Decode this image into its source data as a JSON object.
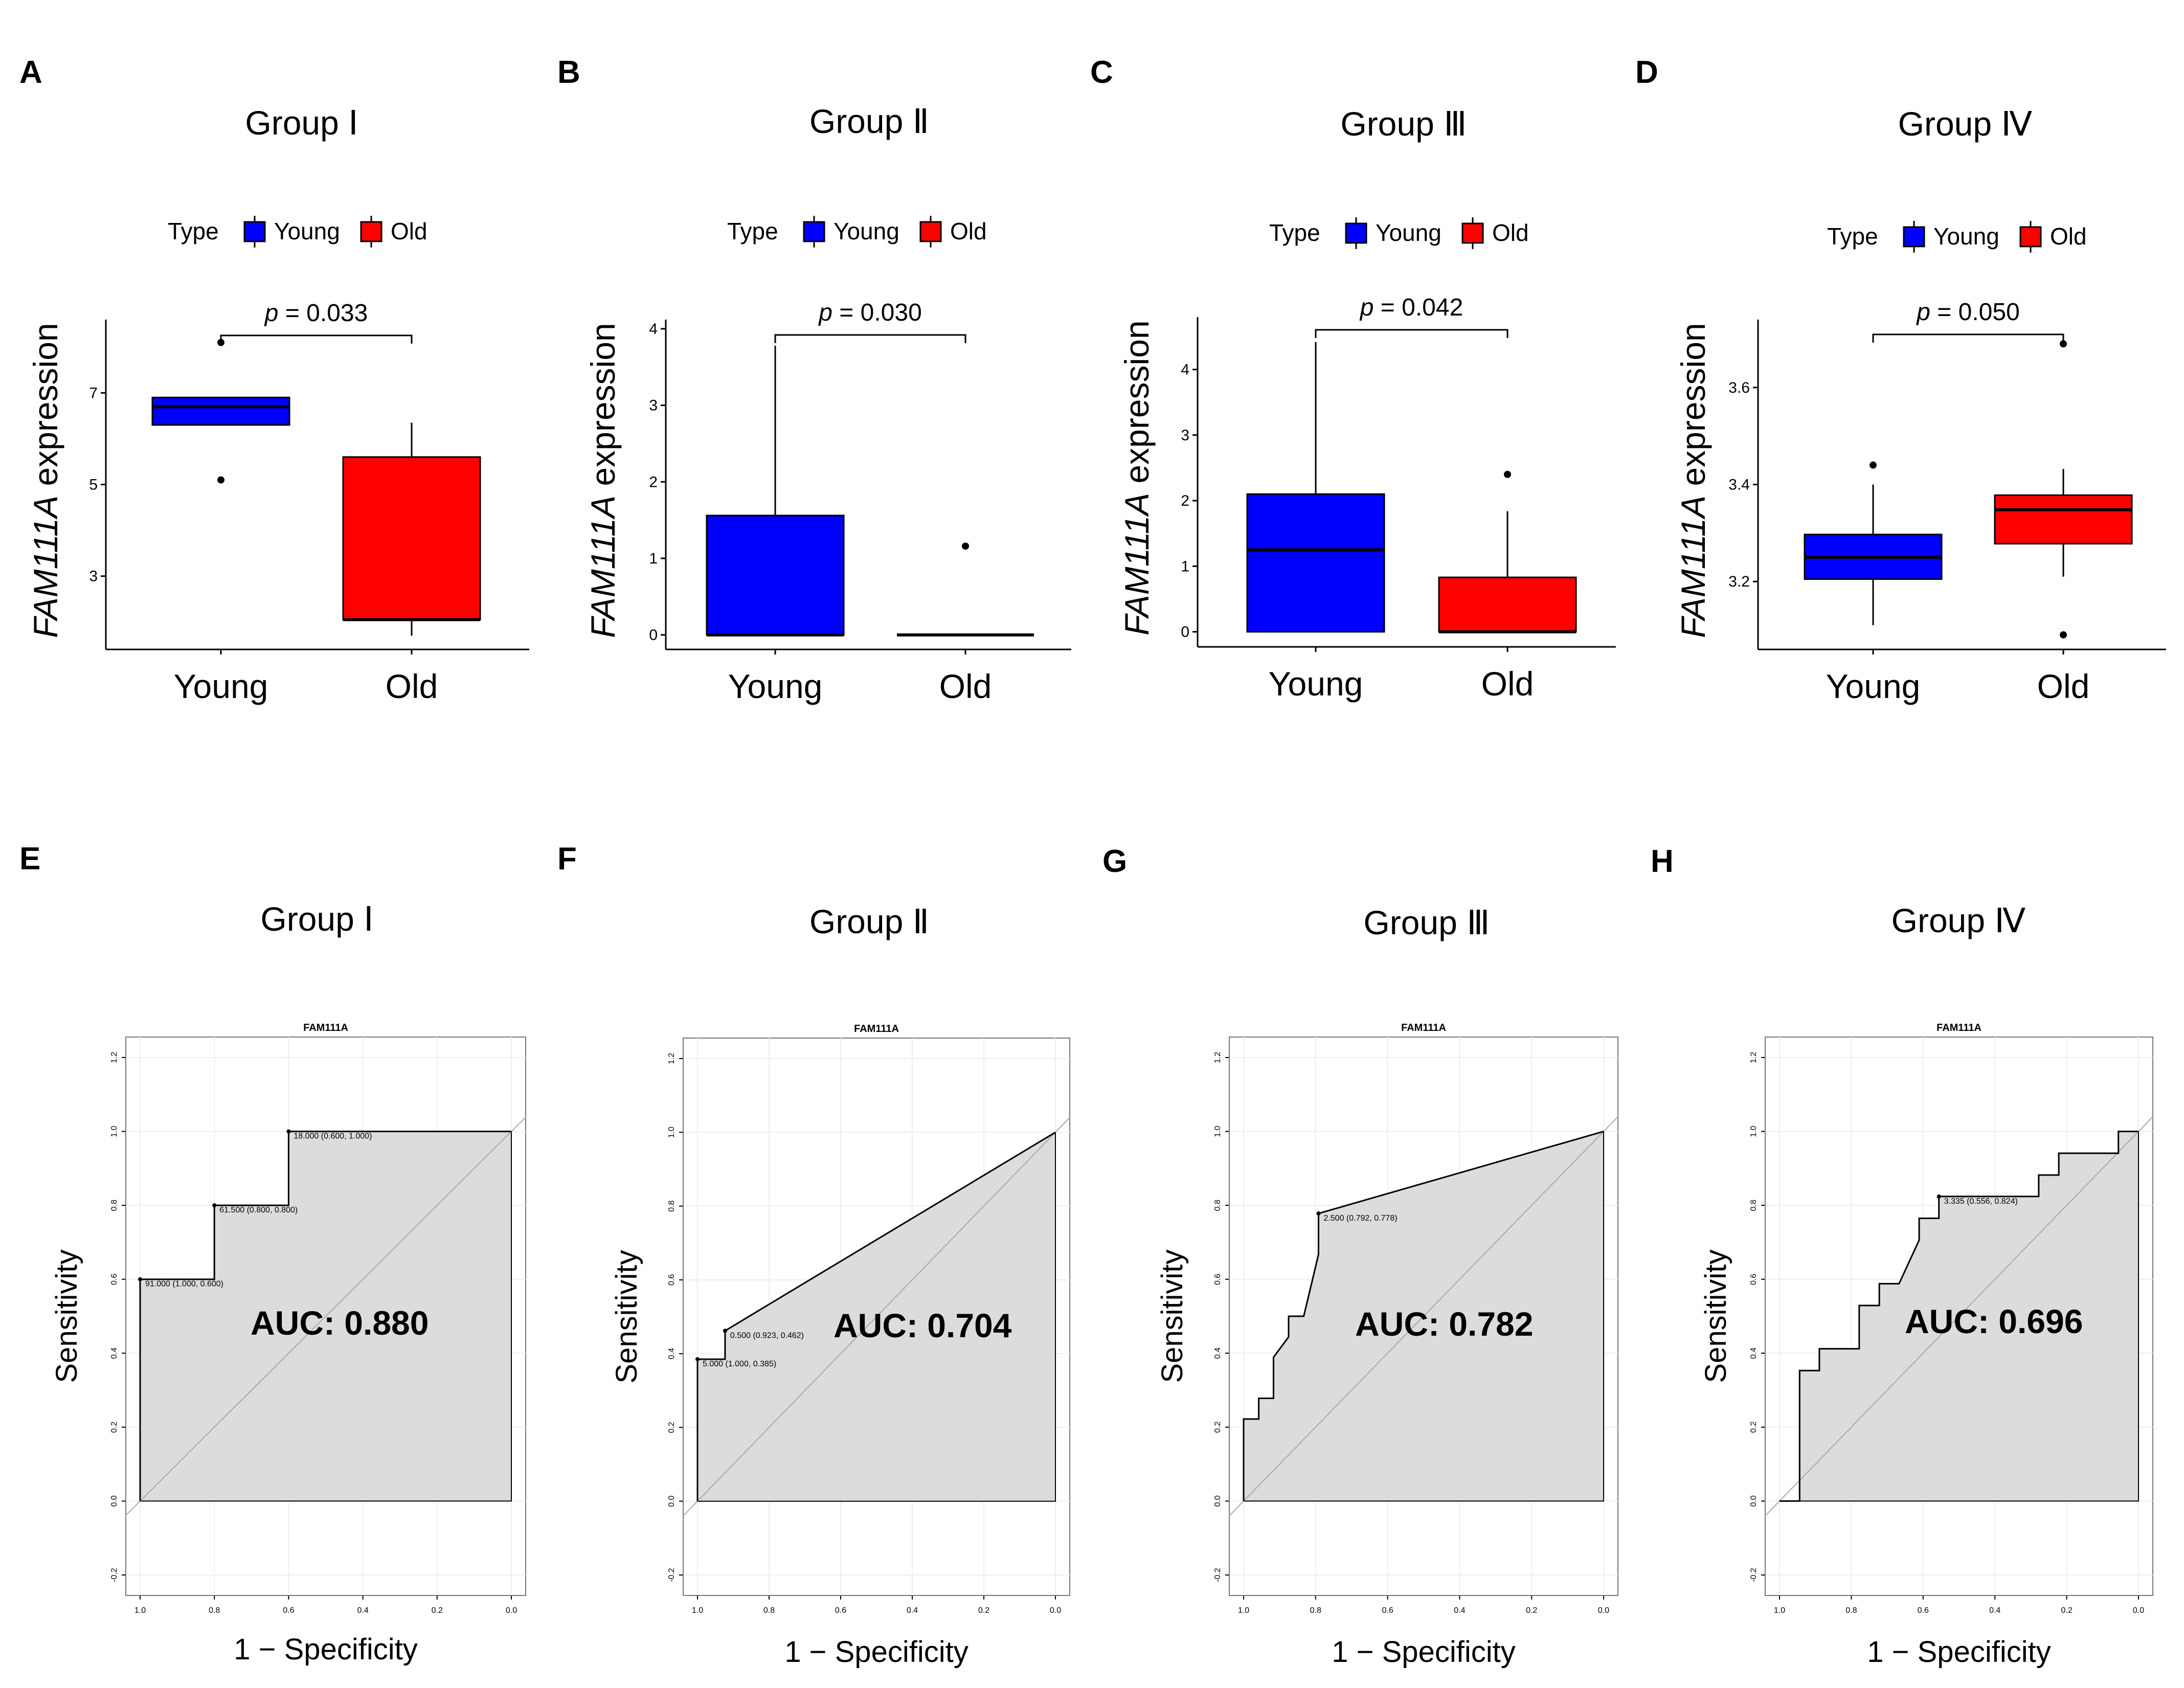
{
  "chart_data": [
    {
      "panel": "A",
      "type": "box",
      "title": "Group Ⅰ",
      "legend_title": "Type",
      "legend": [
        "Young",
        "Old"
      ],
      "colors": {
        "Young": "#0000ff",
        "Old": "#ff0000"
      },
      "ylabel_italic": "FAM111A",
      "ylabel_rest": " expression",
      "ylim": [
        1.4,
        8.6
      ],
      "yticks": [
        3,
        5,
        7
      ],
      "ytick_labels": [
        "3",
        "5",
        "7"
      ],
      "pvalue": "p = 0.033",
      "boxes": [
        {
          "category": "Young",
          "q1": 6.3,
          "median": 6.7,
          "q3": 6.9,
          "whisker_low": 6.3,
          "whisker_high": 6.9,
          "outliers": [
            8.1,
            5.1
          ]
        },
        {
          "category": "Old",
          "q1": 2.05,
          "median": 2.05,
          "q3": 5.6,
          "whisker_low": 1.7,
          "whisker_high": 6.35,
          "outliers": []
        }
      ]
    },
    {
      "panel": "B",
      "type": "box",
      "title": "Group Ⅱ",
      "legend_title": "Type",
      "legend": [
        "Young",
        "Old"
      ],
      "colors": {
        "Young": "#0000ff",
        "Old": "#ff0000"
      },
      "ylabel_italic": "FAM111A",
      "ylabel_rest": " expression",
      "ylim": [
        -0.19,
        4.12
      ],
      "yticks": [
        0,
        1,
        2,
        3,
        4
      ],
      "ytick_labels": [
        "0",
        "1",
        "2",
        "3",
        "4"
      ],
      "pvalue": "p = 0.030",
      "boxes": [
        {
          "category": "Young",
          "q1": 0,
          "median": 0,
          "q3": 1.56,
          "whisker_low": 0,
          "whisker_high": 3.78,
          "outliers": []
        },
        {
          "category": "Old",
          "q1": 0,
          "median": 0,
          "q3": 0,
          "whisker_low": 0,
          "whisker_high": 0,
          "outliers": [
            1.16
          ]
        }
      ]
    },
    {
      "panel": "C",
      "type": "box",
      "title": "Group Ⅲ",
      "legend_title": "Type",
      "legend": [
        "Young",
        "Old"
      ],
      "colors": {
        "Young": "#0000ff",
        "Old": "#ff0000"
      },
      "ylabel_italic": "FAM111A",
      "ylabel_rest": " expression",
      "ylim": [
        -0.23,
        4.8
      ],
      "yticks": [
        0,
        1,
        2,
        3,
        4
      ],
      "ytick_labels": [
        "0",
        "1",
        "2",
        "3",
        "4"
      ],
      "pvalue": "p = 0.042",
      "boxes": [
        {
          "category": "Young",
          "q1": 0,
          "median": 1.25,
          "q3": 2.1,
          "whisker_low": 0,
          "whisker_high": 4.42,
          "outliers": []
        },
        {
          "category": "Old",
          "q1": 0,
          "median": 0,
          "q3": 0.83,
          "whisker_low": 0,
          "whisker_high": 1.84,
          "outliers": [
            2.4
          ]
        }
      ]
    },
    {
      "panel": "D",
      "type": "box",
      "title": "Group Ⅳ",
      "legend_title": "Type",
      "legend": [
        "Young",
        "Old"
      ],
      "colors": {
        "Young": "#0000ff",
        "Old": "#ff0000"
      },
      "ylabel_italic": "FAM111A",
      "ylabel_rest": " expression",
      "ylim": [
        3.06,
        3.74
      ],
      "yticks": [
        3.2,
        3.4,
        3.6
      ],
      "ytick_labels": [
        "3.2",
        "3.4",
        "3.6"
      ],
      "pvalue": "p = 0.050",
      "boxes": [
        {
          "category": "Young",
          "q1": 3.205,
          "median": 3.25,
          "q3": 3.297,
          "whisker_low": 3.11,
          "whisker_high": 3.4,
          "outliers": [
            3.44
          ]
        },
        {
          "category": "Old",
          "q1": 3.278,
          "median": 3.348,
          "q3": 3.378,
          "whisker_low": 3.21,
          "whisker_high": 3.432,
          "outliers": [
            3.69,
            3.09
          ]
        }
      ]
    },
    {
      "panel": "E",
      "type": "roc",
      "title": "Group Ⅰ",
      "plot_title": "FAM111A",
      "xlabel": "1 − Specificity",
      "ylabel": "Sensitivity",
      "auc": "AUC: 0.880",
      "xlim": [
        1.0,
        0.0
      ],
      "ylim": [
        -0.2,
        1.2
      ],
      "xticks": [
        "1.0",
        "0.8",
        "0.6",
        "0.4",
        "0.2",
        "0.0"
      ],
      "yticks": [
        "-0.2",
        "0.0",
        "0.2",
        "0.4",
        "0.6",
        "0.8",
        "1.0",
        "1.2"
      ],
      "curve": [
        [
          1.0,
          0.0
        ],
        [
          1.0,
          0.6
        ],
        [
          0.8,
          0.6
        ],
        [
          0.8,
          0.8
        ],
        [
          0.6,
          0.8
        ],
        [
          0.6,
          1.0
        ],
        [
          0.0,
          1.0
        ]
      ],
      "thresholds": [
        {
          "spec": 1.0,
          "sens": 0.6,
          "label": "91.000 (1.000, 0.600)"
        },
        {
          "spec": 0.8,
          "sens": 0.8,
          "label": "61.500 (0.800, 0.800)"
        },
        {
          "spec": 0.6,
          "sens": 1.0,
          "label": "18.000 (0.600, 1.000)"
        }
      ]
    },
    {
      "panel": "F",
      "type": "roc",
      "title": "Group Ⅱ",
      "plot_title": "FAM111A",
      "xlabel": "1 − Specificity",
      "ylabel": "Sensitivity",
      "auc": "AUC: 0.704",
      "xlim": [
        1.0,
        0.0
      ],
      "ylim": [
        -0.2,
        1.2
      ],
      "xticks": [
        "1.0",
        "0.8",
        "0.6",
        "0.4",
        "0.2",
        "0.0"
      ],
      "yticks": [
        "-0.2",
        "0.0",
        "0.2",
        "0.4",
        "0.6",
        "0.8",
        "1.0",
        "1.2"
      ],
      "curve": [
        [
          1.0,
          0.0
        ],
        [
          1.0,
          0.385
        ],
        [
          0.923,
          0.385
        ],
        [
          0.923,
          0.462
        ],
        [
          0.0,
          1.0
        ]
      ],
      "thresholds": [
        {
          "spec": 1.0,
          "sens": 0.385,
          "label": "5.000 (1.000, 0.385)"
        },
        {
          "spec": 0.923,
          "sens": 0.462,
          "label": "0.500 (0.923, 0.462)"
        }
      ]
    },
    {
      "panel": "G",
      "type": "roc",
      "title": "Group Ⅲ",
      "plot_title": "FAM111A",
      "xlabel": "1 − Specificity",
      "ylabel": "Sensitivity",
      "auc": "AUC: 0.782",
      "xlim": [
        1.0,
        0.0
      ],
      "ylim": [
        -0.2,
        1.2
      ],
      "xticks": [
        "1.0",
        "0.8",
        "0.6",
        "0.4",
        "0.2",
        "0.0"
      ],
      "yticks": [
        "-0.2",
        "0.0",
        "0.2",
        "0.4",
        "0.6",
        "0.8",
        "1.0",
        "1.2"
      ],
      "curve": [
        [
          1.0,
          0.0
        ],
        [
          1.0,
          0.222
        ],
        [
          0.958,
          0.222
        ],
        [
          0.958,
          0.278
        ],
        [
          0.917,
          0.278
        ],
        [
          0.917,
          0.389
        ],
        [
          0.875,
          0.444
        ],
        [
          0.875,
          0.5
        ],
        [
          0.833,
          0.5
        ],
        [
          0.792,
          0.667
        ],
        [
          0.792,
          0.778
        ],
        [
          0.0,
          1.0
        ]
      ],
      "thresholds": [
        {
          "spec": 0.792,
          "sens": 0.778,
          "label": "2.500 (0.792, 0.778)"
        }
      ]
    },
    {
      "panel": "H",
      "type": "roc",
      "title": "Group Ⅳ",
      "plot_title": "FAM111A",
      "xlabel": "1 − Specificity",
      "ylabel": "Sensitivity",
      "auc": "AUC: 0.696",
      "xlim": [
        1.0,
        0.0
      ],
      "ylim": [
        -0.2,
        1.2
      ],
      "xticks": [
        "1.0",
        "0.8",
        "0.6",
        "0.4",
        "0.2",
        "0.0"
      ],
      "yticks": [
        "-0.2",
        "0.0",
        "0.2",
        "0.4",
        "0.6",
        "0.8",
        "1.0",
        "1.2"
      ],
      "curve": [
        [
          1.0,
          0.0
        ],
        [
          0.944,
          0.0
        ],
        [
          0.944,
          0.353
        ],
        [
          0.889,
          0.353
        ],
        [
          0.889,
          0.412
        ],
        [
          0.778,
          0.412
        ],
        [
          0.778,
          0.529
        ],
        [
          0.722,
          0.529
        ],
        [
          0.722,
          0.588
        ],
        [
          0.667,
          0.588
        ],
        [
          0.611,
          0.706
        ],
        [
          0.611,
          0.765
        ],
        [
          0.556,
          0.765
        ],
        [
          0.556,
          0.824
        ],
        [
          0.278,
          0.824
        ],
        [
          0.278,
          0.882
        ],
        [
          0.222,
          0.882
        ],
        [
          0.222,
          0.941
        ],
        [
          0.056,
          0.941
        ],
        [
          0.056,
          1.0
        ],
        [
          0.0,
          1.0
        ]
      ],
      "thresholds": [
        {
          "spec": 0.556,
          "sens": 0.824,
          "label": "3.335 (0.556, 0.824)"
        }
      ]
    }
  ]
}
